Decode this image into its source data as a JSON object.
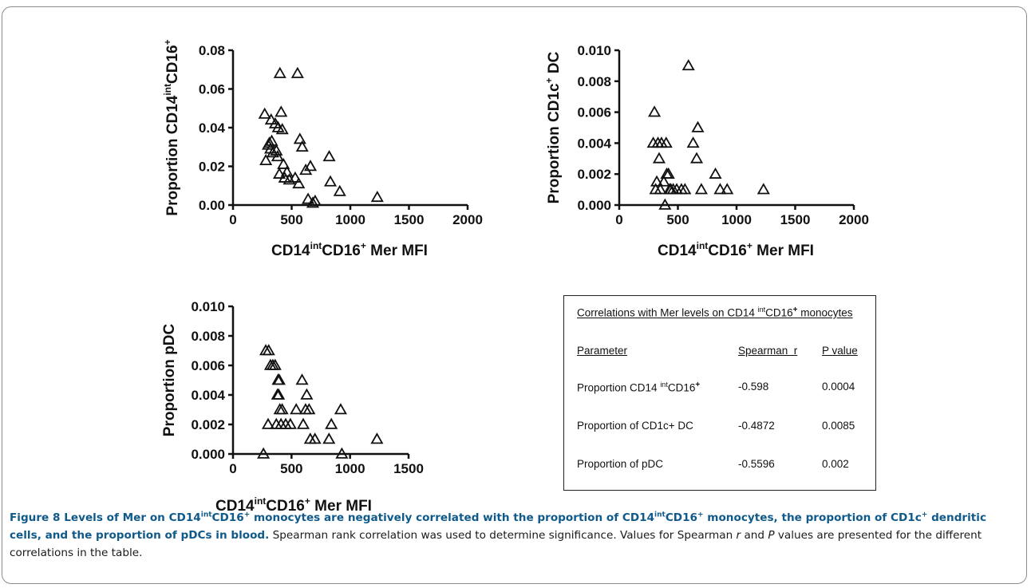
{
  "caption": {
    "figure_label": "Figure 8",
    "bold_parts": [
      " Levels of Mer on CD14",
      "int",
      "CD16",
      "+",
      " monocytes are negatively correlated with the proportion of CD14",
      "int",
      "CD16",
      "+",
      " monocytes, the proportion of CD1c",
      "+",
      " dendritic cells, and the proportion of pDCs in blood."
    ],
    "normal_parts": [
      " Spearman rank correlation was used to determine significance. Values for Spearman ",
      "r",
      " and ",
      "P",
      " values are presented for the different correlations in the table."
    ]
  },
  "table": {
    "title": "Correlations with Mer levels on CD14 ",
    "title_sup1": "int",
    "title_mid": "CD16",
    "title_sup2": "+",
    "title_end": " monocytes",
    "headers": [
      "Parameter",
      "Spearman  r",
      "P value"
    ],
    "rows": [
      {
        "param": "Proportion CD14 ",
        "param_sup1": "int",
        "param_mid": "CD16",
        "param_sup2": "+",
        "r": "-0.598",
        "p": "0.0004"
      },
      {
        "param": "Proportion of CD1c+ DC",
        "r": "-0.4872",
        "p": "0.0085"
      },
      {
        "param": "Proportion of pDC",
        "r": "-0.5596",
        "p": "0.002"
      }
    ]
  },
  "chart_data": [
    {
      "type": "scatter",
      "ylabel_parts": [
        "Proportion  CD14",
        "int",
        "CD16",
        "+"
      ],
      "xlabel_parts": [
        "CD14",
        "int",
        "CD16",
        "+",
        " Mer MFI"
      ],
      "xlim": [
        0,
        2000
      ],
      "ylim": [
        0,
        0.08
      ],
      "xticks": [
        "0",
        "500",
        "1000",
        "1500",
        "2000"
      ],
      "yticks": [
        "0.00",
        "0.02",
        "0.04",
        "0.06",
        "0.08"
      ],
      "marker": "open-triangle",
      "points": [
        [
          270,
          0.047
        ],
        [
          280,
          0.023
        ],
        [
          300,
          0.031
        ],
        [
          310,
          0.032
        ],
        [
          320,
          0.029
        ],
        [
          325,
          0.044
        ],
        [
          330,
          0.033
        ],
        [
          340,
          0.027
        ],
        [
          360,
          0.042
        ],
        [
          370,
          0.028
        ],
        [
          380,
          0.025
        ],
        [
          385,
          0.04
        ],
        [
          395,
          0.016
        ],
        [
          400,
          0.068
        ],
        [
          410,
          0.048
        ],
        [
          420,
          0.039
        ],
        [
          430,
          0.021
        ],
        [
          440,
          0.014
        ],
        [
          460,
          0.017
        ],
        [
          480,
          0.013
        ],
        [
          530,
          0.014
        ],
        [
          550,
          0.068
        ],
        [
          560,
          0.011
        ],
        [
          570,
          0.034
        ],
        [
          590,
          0.03
        ],
        [
          620,
          0.018
        ],
        [
          640,
          0.003
        ],
        [
          660,
          0.02
        ],
        [
          680,
          0.001
        ],
        [
          700,
          0.002
        ],
        [
          820,
          0.025
        ],
        [
          830,
          0.012
        ],
        [
          910,
          0.007
        ],
        [
          1230,
          0.004
        ]
      ]
    },
    {
      "type": "scatter",
      "ylabel_parts": [
        "Proportion CD1c",
        "+",
        " DC"
      ],
      "xlabel_parts": [
        "CD14",
        "int",
        "CD16",
        "+",
        " Mer MFI"
      ],
      "xlim": [
        0,
        2000
      ],
      "ylim": [
        0,
        0.01
      ],
      "xticks": [
        "0",
        "500",
        "1000",
        "1500",
        "2000"
      ],
      "yticks": [
        "0.000",
        "0.002",
        "0.004",
        "0.006",
        "0.008",
        "0.010"
      ],
      "marker": "open-triangle",
      "points": [
        [
          290,
          0.004
        ],
        [
          300,
          0.006
        ],
        [
          310,
          0.001
        ],
        [
          320,
          0.0015
        ],
        [
          330,
          0.004
        ],
        [
          340,
          0.003
        ],
        [
          350,
          0.001
        ],
        [
          360,
          0.004
        ],
        [
          380,
          0.0015
        ],
        [
          390,
          0.0
        ],
        [
          400,
          0.004
        ],
        [
          405,
          0.002
        ],
        [
          420,
          0.002
        ],
        [
          430,
          0.001
        ],
        [
          440,
          0.001
        ],
        [
          460,
          0.001
        ],
        [
          490,
          0.001
        ],
        [
          530,
          0.001
        ],
        [
          560,
          0.001
        ],
        [
          590,
          0.009
        ],
        [
          630,
          0.004
        ],
        [
          660,
          0.003
        ],
        [
          670,
          0.005
        ],
        [
          700,
          0.001
        ],
        [
          820,
          0.002
        ],
        [
          860,
          0.001
        ],
        [
          920,
          0.001
        ],
        [
          1230,
          0.001
        ]
      ]
    },
    {
      "type": "scatter",
      "ylabel_parts": [
        "Proportion  pDC"
      ],
      "xlabel_parts": [
        "CD14",
        "int",
        "CD16",
        "+",
        " Mer MFI"
      ],
      "xlim": [
        0,
        1500
      ],
      "ylim": [
        0,
        0.01
      ],
      "xticks": [
        "0",
        "500",
        "1000",
        "1500"
      ],
      "yticks": [
        "0.000",
        "0.002",
        "0.004",
        "0.006",
        "0.008",
        "0.010"
      ],
      "marker": "open-triangle",
      "points": [
        [
          260,
          0.0
        ],
        [
          280,
          0.007
        ],
        [
          300,
          0.002
        ],
        [
          305,
          0.007
        ],
        [
          320,
          0.006
        ],
        [
          340,
          0.006
        ],
        [
          360,
          0.006
        ],
        [
          370,
          0.002
        ],
        [
          380,
          0.004
        ],
        [
          385,
          0.005
        ],
        [
          390,
          0.004
        ],
        [
          395,
          0.005
        ],
        [
          400,
          0.003
        ],
        [
          410,
          0.002
        ],
        [
          420,
          0.003
        ],
        [
          450,
          0.002
        ],
        [
          490,
          0.002
        ],
        [
          540,
          0.003
        ],
        [
          590,
          0.005
        ],
        [
          600,
          0.002
        ],
        [
          620,
          0.003
        ],
        [
          630,
          0.004
        ],
        [
          650,
          0.003
        ],
        [
          660,
          0.001
        ],
        [
          700,
          0.001
        ],
        [
          820,
          0.001
        ],
        [
          840,
          0.002
        ],
        [
          920,
          0.003
        ],
        [
          930,
          0.0
        ],
        [
          1230,
          0.001
        ]
      ]
    }
  ]
}
